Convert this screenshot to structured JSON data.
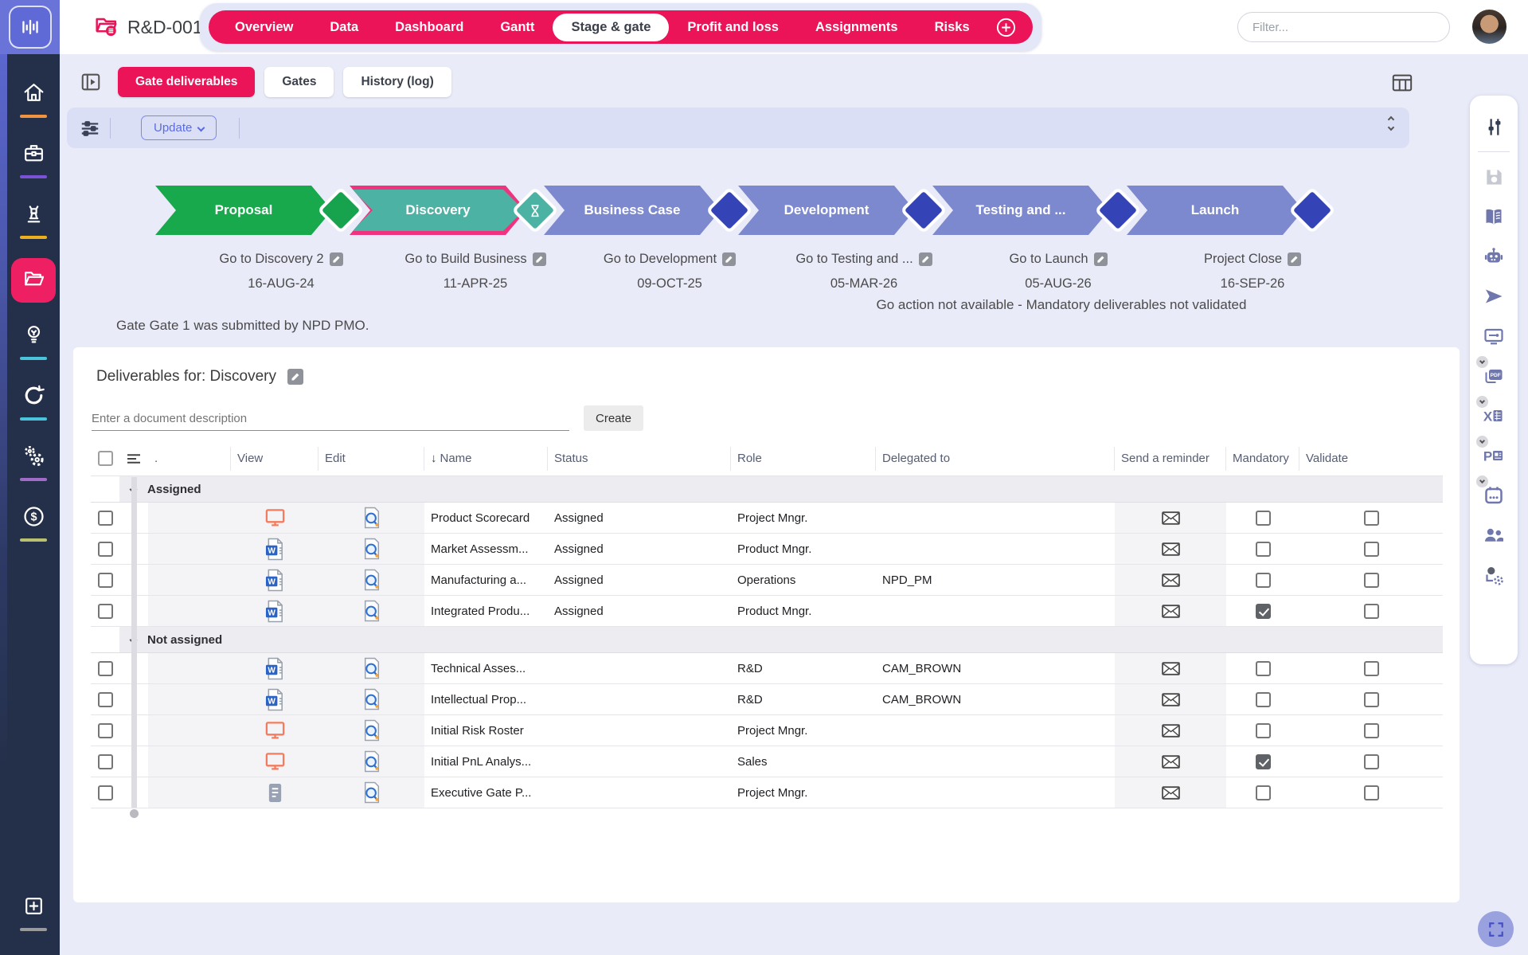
{
  "topbar": {
    "project_title": "R&D-001",
    "filter_placeholder": "Filter...",
    "active_tab": "Stage & gate",
    "tabs": [
      "Overview",
      "Data",
      "Dashboard",
      "Gantt",
      "Stage & gate",
      "Profit and loss",
      "Assignments",
      "Risks"
    ]
  },
  "sidebar": {
    "items": [
      {
        "name": "home",
        "underline": "#f09440"
      },
      {
        "name": "briefcase",
        "underline": "#7a52d6"
      },
      {
        "name": "chess-strategy",
        "underline": "#ecb01e"
      },
      {
        "name": "projects-folder",
        "active": true,
        "active_bg": "#ee1f63"
      },
      {
        "name": "idea-bulb",
        "underline": "#49c4da"
      },
      {
        "name": "refresh-cycle",
        "underline": "#49c4da"
      },
      {
        "name": "settings-gears",
        "underline": "#a06cc7"
      },
      {
        "name": "finance-dollar",
        "underline": "#b9c16e"
      }
    ],
    "bottom_item": {
      "name": "add-new",
      "underline": "#9a9a9a"
    }
  },
  "sub_toolbar": {
    "buttons": [
      "Gate deliverables",
      "Gates",
      "History (log)"
    ],
    "active": "Gate deliverables",
    "update_label": "Update"
  },
  "stage_gate": {
    "stages": [
      {
        "name": "Proposal",
        "fill": "#17a94b",
        "gate_fill": "#17a34d",
        "gate_icon": ""
      },
      {
        "name": "Discovery",
        "fill": "#4cb3a4",
        "border": "#f0337f",
        "gate_fill": "#4cb3a4",
        "gate_icon": "hourglass"
      },
      {
        "name": "Business Case",
        "fill": "#7d89cf",
        "gate_fill": "#3443b5",
        "gate_icon": ""
      },
      {
        "name": "Development",
        "fill": "#7d89cf",
        "gate_fill": "#3443b5",
        "gate_icon": ""
      },
      {
        "name": "Testing and ...",
        "fill": "#7d89cf",
        "gate_fill": "#3443b5",
        "gate_icon": ""
      },
      {
        "name": "Launch",
        "fill": "#7d89cf",
        "gate_fill": "#3443b5",
        "gate_icon": ""
      }
    ],
    "gate_actions": [
      {
        "label": "Go to Discovery 2",
        "date": "16-AUG-24"
      },
      {
        "label": "Go to Build Business",
        "date": "11-APR-25"
      },
      {
        "label": "Go to Development",
        "date": "09-OCT-25"
      },
      {
        "label": "Go to Testing and ...",
        "date": "05-MAR-26"
      },
      {
        "label": "Go to Launch",
        "date": "05-AUG-26"
      },
      {
        "label": "Project Close",
        "date": "16-SEP-26"
      }
    ],
    "warning": "Go action not available - Mandatory deliverables not validated",
    "note": "Gate Gate 1 was submitted by NPD PMO."
  },
  "deliverables": {
    "title": "Deliverables for: Discovery",
    "input_placeholder": "Enter a document description",
    "create_label": "Create",
    "columns": [
      ".",
      "View",
      "Edit",
      "Name",
      "Status",
      "Role",
      "Delegated to",
      "Send a reminder",
      "Mandatory",
      "Validate"
    ],
    "sort_column": "Name",
    "groups": [
      {
        "label": "Assigned",
        "rows": [
          {
            "doc": "monitor",
            "name": "Product Scorecard",
            "status": "Assigned",
            "role": "Project Mngr.",
            "delegated": "",
            "mandatory": false,
            "validate": false
          },
          {
            "doc": "word",
            "name": "Market Assessm...",
            "status": "Assigned",
            "role": "Product Mngr.",
            "delegated": "",
            "mandatory": false,
            "validate": false
          },
          {
            "doc": "word",
            "name": "Manufacturing a...",
            "status": "Assigned",
            "role": "Operations",
            "delegated": "NPD_PM",
            "mandatory": false,
            "validate": false
          },
          {
            "doc": "word",
            "name": "Integrated Produ...",
            "status": "Assigned",
            "role": "Product Mngr.",
            "delegated": "",
            "mandatory": true,
            "validate": false
          }
        ]
      },
      {
        "label": "Not assigned",
        "rows": [
          {
            "doc": "word",
            "name": "Technical Asses...",
            "status": "",
            "role": "R&D",
            "delegated": "CAM_BROWN",
            "mandatory": false,
            "validate": false
          },
          {
            "doc": "word",
            "name": "Intellectual Prop...",
            "status": "",
            "role": "R&D",
            "delegated": "CAM_BROWN",
            "mandatory": false,
            "validate": false
          },
          {
            "doc": "monitor",
            "name": "Initial Risk Roster",
            "status": "",
            "role": "Project Mngr.",
            "delegated": "",
            "mandatory": false,
            "validate": false
          },
          {
            "doc": "monitor",
            "name": "Initial PnL Analys...",
            "status": "",
            "role": "Sales",
            "delegated": "",
            "mandatory": true,
            "validate": false
          },
          {
            "doc": "notes",
            "name": "Executive Gate P...",
            "status": "",
            "role": "Project Mngr.",
            "delegated": "",
            "mandatory": false,
            "validate": false
          }
        ]
      }
    ]
  },
  "right_toolbar": {
    "icons": [
      "column-settings",
      "save",
      "knowledge-book",
      "assistant-robot",
      "send",
      "display-settings",
      "export-pdf",
      "export-excel",
      "export-ppt",
      "export-calendar",
      "team",
      "admin-settings"
    ],
    "badged": [
      "export-pdf",
      "export-excel",
      "export-ppt",
      "export-calendar"
    ],
    "disabled": [
      "save"
    ]
  },
  "colors": {
    "accent_pink": "#ec1459",
    "active_pink": "#ee1f63",
    "indigo": "#5f6ad6",
    "content_bg": "#e9ebf8",
    "teal": "#4cb3a4",
    "green": "#17a94b",
    "stage_indigo": "#7d89cf",
    "gate_indigo": "#3443b5"
  }
}
